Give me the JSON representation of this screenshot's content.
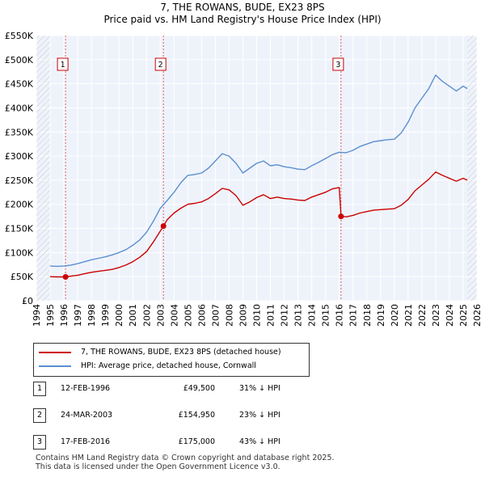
{
  "title_line1": "7, THE ROWANS, BUDE, EX23 8PS",
  "title_line2": "Price paid vs. HM Land Registry's House Price Index (HPI)",
  "chart_data": {
    "type": "line",
    "title": "7, THE ROWANS, BUDE, EX23 8PS — Price paid vs. HM Land Registry's House Price Index (HPI)",
    "xlim": [
      1994,
      2026
    ],
    "ylim": [
      0,
      550000
    ],
    "x_ticks": [
      "1994",
      "1995",
      "1996",
      "1997",
      "1998",
      "1999",
      "2000",
      "2001",
      "2002",
      "2003",
      "2004",
      "2005",
      "2006",
      "2007",
      "2008",
      "2009",
      "2010",
      "2011",
      "2012",
      "2013",
      "2014",
      "2015",
      "2016",
      "2017",
      "2018",
      "2019",
      "2020",
      "2021",
      "2022",
      "2023",
      "2024",
      "2025",
      "2026"
    ],
    "y_ticks": [
      {
        "value": 0,
        "label": "£0"
      },
      {
        "value": 50000,
        "label": "£50K"
      },
      {
        "value": 100000,
        "label": "£100K"
      },
      {
        "value": 150000,
        "label": "£150K"
      },
      {
        "value": 200000,
        "label": "£200K"
      },
      {
        "value": 250000,
        "label": "£250K"
      },
      {
        "value": 300000,
        "label": "£300K"
      },
      {
        "value": 350000,
        "label": "£350K"
      },
      {
        "value": 400000,
        "label": "£400K"
      },
      {
        "value": 450000,
        "label": "£450K"
      },
      {
        "value": 500000,
        "label": "£500K"
      },
      {
        "value": 550000,
        "label": "£550K"
      }
    ],
    "data_range": [
      1995.0,
      2025.3
    ],
    "series": [
      {
        "name": "HPI: Average price, detached house, Cornwall",
        "color": "#5b8fcf",
        "points": [
          [
            1995.0,
            72000
          ],
          [
            1995.5,
            71500
          ],
          [
            1996.0,
            72000
          ],
          [
            1996.5,
            74000
          ],
          [
            1997.0,
            77000
          ],
          [
            1997.5,
            81000
          ],
          [
            1998.0,
            85000
          ],
          [
            1998.5,
            88000
          ],
          [
            1999.0,
            91000
          ],
          [
            1999.5,
            95000
          ],
          [
            2000.0,
            100000
          ],
          [
            2000.5,
            106000
          ],
          [
            2001.0,
            115000
          ],
          [
            2001.5,
            126000
          ],
          [
            2002.0,
            142000
          ],
          [
            2002.5,
            165000
          ],
          [
            2003.0,
            192000
          ],
          [
            2003.5,
            208000
          ],
          [
            2004.0,
            225000
          ],
          [
            2004.5,
            245000
          ],
          [
            2005.0,
            260000
          ],
          [
            2005.5,
            262000
          ],
          [
            2006.0,
            265000
          ],
          [
            2006.5,
            275000
          ],
          [
            2007.0,
            290000
          ],
          [
            2007.5,
            305000
          ],
          [
            2008.0,
            300000
          ],
          [
            2008.5,
            285000
          ],
          [
            2009.0,
            265000
          ],
          [
            2009.5,
            275000
          ],
          [
            2010.0,
            285000
          ],
          [
            2010.5,
            290000
          ],
          [
            2011.0,
            280000
          ],
          [
            2011.5,
            282000
          ],
          [
            2012.0,
            278000
          ],
          [
            2012.5,
            276000
          ],
          [
            2013.0,
            273000
          ],
          [
            2013.5,
            272000
          ],
          [
            2014.0,
            280000
          ],
          [
            2014.5,
            287000
          ],
          [
            2015.0,
            295000
          ],
          [
            2015.5,
            303000
          ],
          [
            2016.0,
            308000
          ],
          [
            2016.5,
            307000
          ],
          [
            2017.0,
            312000
          ],
          [
            2017.5,
            320000
          ],
          [
            2018.0,
            325000
          ],
          [
            2018.5,
            330000
          ],
          [
            2019.0,
            332000
          ],
          [
            2019.5,
            334000
          ],
          [
            2020.0,
            335000
          ],
          [
            2020.5,
            348000
          ],
          [
            2021.0,
            370000
          ],
          [
            2021.5,
            400000
          ],
          [
            2022.0,
            420000
          ],
          [
            2022.5,
            440000
          ],
          [
            2023.0,
            468000
          ],
          [
            2023.5,
            455000
          ],
          [
            2024.0,
            445000
          ],
          [
            2024.5,
            435000
          ],
          [
            2025.0,
            445000
          ],
          [
            2025.3,
            440000
          ]
        ]
      },
      {
        "name": "7, THE ROWANS, BUDE, EX23 8PS (detached house)",
        "color": "#cc0000",
        "points": [
          [
            1995.0,
            50000
          ],
          [
            1995.5,
            49500
          ],
          [
            1996.12,
            49500
          ],
          [
            1996.5,
            51000
          ],
          [
            1997.0,
            53000
          ],
          [
            1997.5,
            56000
          ],
          [
            1998.0,
            59000
          ],
          [
            1998.5,
            61000
          ],
          [
            1999.0,
            63000
          ],
          [
            1999.5,
            65000
          ],
          [
            2000.0,
            69000
          ],
          [
            2000.5,
            74000
          ],
          [
            2001.0,
            81000
          ],
          [
            2001.5,
            90000
          ],
          [
            2002.0,
            102000
          ],
          [
            2002.5,
            122000
          ],
          [
            2003.23,
            154950
          ],
          [
            2003.5,
            168000
          ],
          [
            2004.0,
            182000
          ],
          [
            2004.5,
            192000
          ],
          [
            2005.0,
            200000
          ],
          [
            2005.5,
            202000
          ],
          [
            2006.0,
            205000
          ],
          [
            2006.5,
            212000
          ],
          [
            2007.0,
            222000
          ],
          [
            2007.5,
            233000
          ],
          [
            2008.0,
            230000
          ],
          [
            2008.5,
            218000
          ],
          [
            2009.0,
            198000
          ],
          [
            2009.5,
            205000
          ],
          [
            2010.0,
            214000
          ],
          [
            2010.5,
            220000
          ],
          [
            2011.0,
            212000
          ],
          [
            2011.5,
            215000
          ],
          [
            2012.0,
            212000
          ],
          [
            2012.5,
            211000
          ],
          [
            2013.0,
            209000
          ],
          [
            2013.5,
            208000
          ],
          [
            2014.0,
            215000
          ],
          [
            2014.5,
            220000
          ],
          [
            2015.0,
            225000
          ],
          [
            2015.5,
            232000
          ],
          [
            2016.0,
            235000
          ],
          [
            2016.13,
            175000
          ],
          [
            2016.5,
            174000
          ],
          [
            2017.0,
            177000
          ],
          [
            2017.5,
            182000
          ],
          [
            2018.0,
            185000
          ],
          [
            2018.5,
            188000
          ],
          [
            2019.0,
            189000
          ],
          [
            2019.5,
            190000
          ],
          [
            2020.0,
            191000
          ],
          [
            2020.5,
            198000
          ],
          [
            2021.0,
            210000
          ],
          [
            2021.5,
            228000
          ],
          [
            2022.0,
            240000
          ],
          [
            2022.5,
            252000
          ],
          [
            2023.0,
            267000
          ],
          [
            2023.5,
            260000
          ],
          [
            2024.0,
            254000
          ],
          [
            2024.5,
            248000
          ],
          [
            2025.0,
            254000
          ],
          [
            2025.3,
            250000
          ]
        ]
      }
    ],
    "sales": [
      {
        "label": "1",
        "x": 1996.12,
        "y": 49500
      },
      {
        "label": "2",
        "x": 2003.23,
        "y": 154950
      },
      {
        "label": "3",
        "x": 2016.13,
        "y": 175000
      }
    ]
  },
  "legend": {
    "property_label": "7, THE ROWANS, BUDE, EX23 8PS (detached house)",
    "hpi_label": "HPI: Average price, detached house, Cornwall",
    "property_color": "#cc0000",
    "hpi_color": "#5b8fcf"
  },
  "sales_table": [
    {
      "num": "1",
      "date": "12-FEB-1996",
      "price": "£49,500",
      "delta": "31% ↓ HPI"
    },
    {
      "num": "2",
      "date": "24-MAR-2003",
      "price": "£154,950",
      "delta": "23% ↓ HPI"
    },
    {
      "num": "3",
      "date": "17-FEB-2016",
      "price": "£175,000",
      "delta": "43% ↓ HPI"
    }
  ],
  "footer_line1": "Contains HM Land Registry data © Crown copyright and database right 2025.",
  "footer_line2": "This data is licensed under the Open Government Licence v3.0."
}
